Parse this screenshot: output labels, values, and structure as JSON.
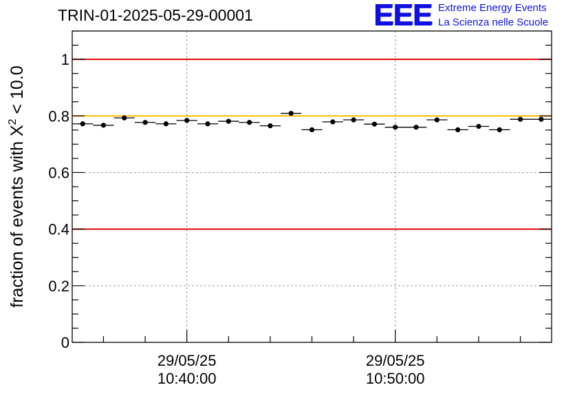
{
  "header": {
    "title": "TRIN-01-2025-05-29-00001",
    "logo_mark": "EEE",
    "logo_line1": "Extreme Energy Events",
    "logo_line2": "La Scienza nelle Scuole"
  },
  "colors": {
    "red_line": "#e00000",
    "orange_line": "#ffbb00",
    "logo": "#1010e0",
    "grid": "#999999"
  },
  "chart_data": {
    "type": "scatter",
    "title": "TRIN-01-2025-05-29-00001",
    "xlabel": "",
    "ylabel_prefix": "fraction of events with ",
    "ylabel_symbol": "X",
    "ylabel_sup": "2",
    "ylabel_suffix": " < 10.0",
    "x_unit": "minutes after 10:40:00",
    "xlim": [
      -5.5,
      17.5
    ],
    "ylim": [
      0,
      1.1
    ],
    "yticks": [
      0,
      0.2,
      0.4,
      0.6,
      0.8,
      1
    ],
    "ytick_labels": [
      "0",
      "0.2",
      "0.4",
      "0.6",
      "0.8",
      "1"
    ],
    "xticks_major": [
      0,
      10
    ],
    "xtick_labels": [
      {
        "date": "29/05/25",
        "time": "10:40:00"
      },
      {
        "date": "29/05/25",
        "time": "10:50:00"
      }
    ],
    "reference_lines": [
      {
        "y": 1.0,
        "color": "red"
      },
      {
        "y": 0.8,
        "color": "orange"
      },
      {
        "y": 0.4,
        "color": "red"
      }
    ],
    "grid": true,
    "bin_width": 1,
    "x": [
      -5,
      -4,
      -3,
      -2,
      -1,
      0,
      1,
      2,
      3,
      4,
      5,
      6,
      7,
      8,
      9,
      10,
      11,
      12,
      13,
      14,
      15,
      16,
      17
    ],
    "y": [
      0.772,
      0.767,
      0.793,
      0.777,
      0.772,
      0.784,
      0.772,
      0.781,
      0.777,
      0.765,
      0.809,
      0.751,
      0.779,
      0.786,
      0.771,
      0.76,
      0.76,
      0.786,
      0.751,
      0.763,
      0.751,
      0.788,
      0.788
    ],
    "yerr": 0.008
  }
}
